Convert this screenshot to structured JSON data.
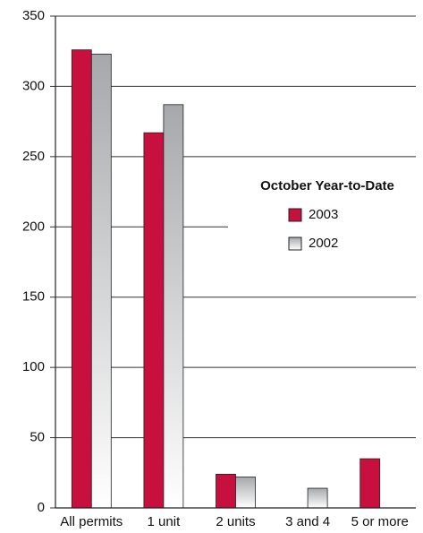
{
  "chart_data": {
    "type": "bar",
    "categories": [
      "All permits",
      "1 unit",
      "2 units",
      "3 and 4",
      "5 or more"
    ],
    "series": [
      {
        "name": "2003",
        "color": "#c8103e",
        "values": [
          326,
          267,
          24,
          0,
          35
        ]
      },
      {
        "name": "2002",
        "color": "#a6a8ab",
        "values": [
          323,
          287,
          22,
          14,
          0
        ]
      }
    ],
    "legend_title": "October Year-to-Date",
    "ylim": [
      0,
      350
    ],
    "yticks": [
      0,
      50,
      100,
      150,
      200,
      250,
      300,
      350
    ],
    "grid": true
  }
}
